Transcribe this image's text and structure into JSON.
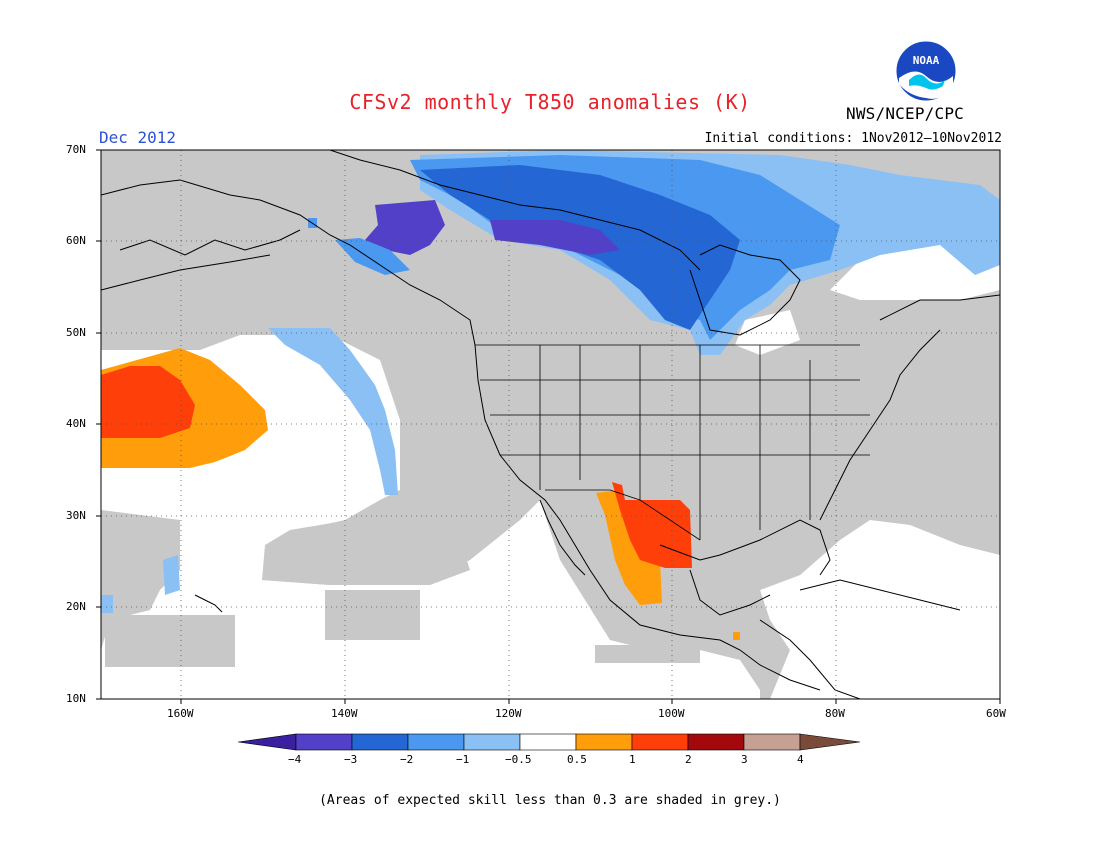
{
  "header": {
    "title": "CFSv2 monthly T850 anomalies (K)",
    "month": "Dec 2012",
    "initial_conditions": "Initial conditions: 1Nov2012–10Nov2012",
    "agency": "NWS/NCEP/CPC",
    "logo_text": "NOAA"
  },
  "map": {
    "lat_labels": [
      "70N",
      "60N",
      "50N",
      "40N",
      "30N",
      "20N",
      "10N"
    ],
    "lon_labels": [
      "160W",
      "140W",
      "120W",
      "100W",
      "80W",
      "60W"
    ],
    "extent": {
      "lon": [
        -172,
        -60
      ],
      "lat": [
        10,
        70
      ]
    },
    "grey_color": "#c8c8c8"
  },
  "colorbar": {
    "labels": [
      "−4",
      "−3",
      "−2",
      "−1",
      "−0.5",
      "0.5",
      "1",
      "2",
      "3",
      "4"
    ],
    "colors": [
      "#3a1f9f",
      "#5340c8",
      "#2466d3",
      "#4a98f0",
      "#8bc0f5",
      "#ffffff",
      "#ff9e0a",
      "#ff3f0a",
      "#a3080d",
      "#c5a093",
      "#7a4a3a"
    ]
  },
  "footnote": "(Areas of expected skill less than 0.3 are shaded in grey.)"
}
